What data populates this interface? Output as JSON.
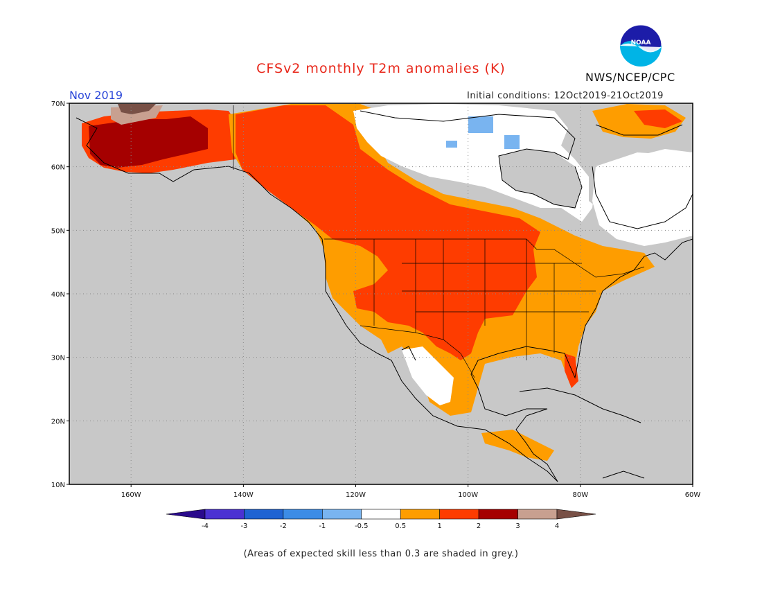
{
  "header": {
    "title": "CFSv2 monthly T2m anomalies (K)",
    "agency": "NWS/NCEP/CPC",
    "logo_text": "NOAA",
    "month_label": "Nov 2019",
    "initial_conditions": "Initial conditions: 12Oct2019-21Oct2019"
  },
  "map": {
    "lat_range": [
      10,
      70
    ],
    "lon_range": [
      -171,
      -60
    ],
    "lat_labels": [
      "10N",
      "20N",
      "30N",
      "40N",
      "50N",
      "60N",
      "70N"
    ],
    "lon_labels": [
      "160W",
      "140W",
      "120W",
      "100W",
      "80W",
      "60W"
    ],
    "colors": {
      "no_skill": "#c8c8c8",
      "neutral": "#ffffff",
      "warm_0_5_1": "#fe9d00",
      "warm_1_2": "#fe3c00",
      "warm_2_3": "#a50000",
      "warm_3_4": "#c8a090",
      "cool_n1_n0_5": "#79b4f0",
      "cool_n2_n1": "#3c8ce6"
    }
  },
  "colorbar": {
    "labels": [
      "-4",
      "-3",
      "-2",
      "-1",
      "-0.5",
      "0.5",
      "1",
      "2",
      "3",
      "4"
    ],
    "colors": [
      "#2a0a8c",
      "#4b32d2",
      "#1f63d2",
      "#3c8ce6",
      "#79b4f0",
      "#ffffff",
      "#fe9d00",
      "#fe3c00",
      "#a50000",
      "#c8a090",
      "#785046"
    ]
  },
  "footnote": "(Areas of expected skill less than 0.3 are shaded in grey.)"
}
